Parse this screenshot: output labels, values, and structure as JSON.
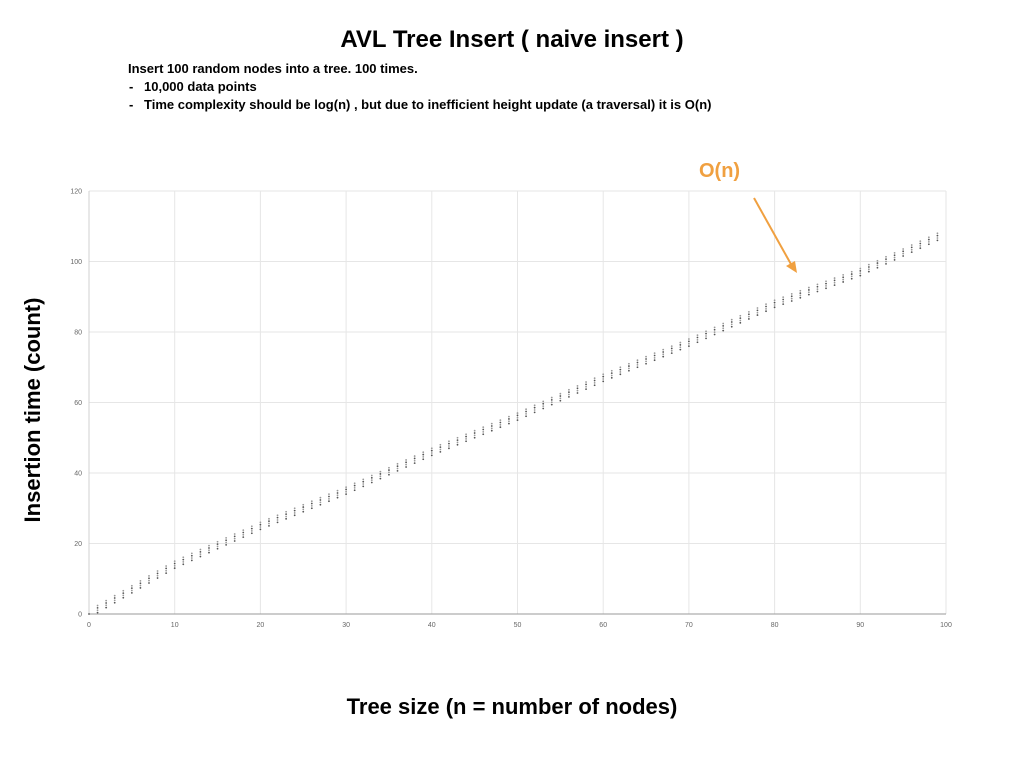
{
  "title": "AVL Tree Insert ( naive insert )",
  "description": {
    "line": "Insert 100 random nodes into a tree. 100 times.",
    "bullets": [
      "10,000 data points",
      "Time complexity should be log(n) , but due to inefficient height update (a traversal) it is O(n)"
    ],
    "bullet_marker": "-"
  },
  "annotation": {
    "text": "O(n)",
    "color": "#f0a040"
  },
  "chart_data": {
    "type": "scatter",
    "title": "AVL Tree Insert ( naive insert )",
    "xlabel": "Tree size (n = number of nodes)",
    "ylabel": "Insertion time (count)",
    "xlim": [
      0,
      100
    ],
    "ylim": [
      0,
      120
    ],
    "x_ticks": [
      0,
      10,
      20,
      30,
      40,
      50,
      60,
      70,
      80,
      90,
      100
    ],
    "y_ticks": [
      0,
      20,
      40,
      60,
      80,
      100,
      120
    ],
    "grid": true,
    "point_color": "#555555",
    "grid_color": "#e6e6e6",
    "trend": {
      "description": "approximately linear, y ≈ 1.08·x + 1 with small vertical spread per x",
      "x": [
        0,
        10,
        20,
        30,
        40,
        50,
        60,
        70,
        80,
        90,
        99
      ],
      "y_mid": [
        0,
        14,
        25,
        35,
        46,
        56,
        67,
        77,
        88,
        97,
        107
      ],
      "y_spread": 2
    }
  }
}
